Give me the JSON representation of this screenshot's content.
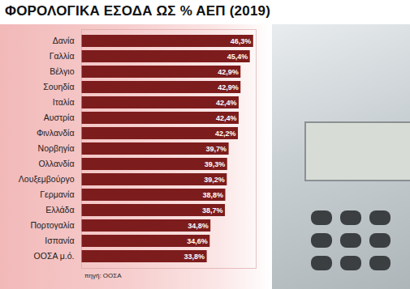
{
  "chart_data": {
    "type": "bar",
    "orientation": "horizontal",
    "title": "ΦΟΡΟΛΟΓΙΚΑ ΕΣΟΔΑ ΩΣ % ΑΕΠ (2019)",
    "source": "πηγή: ΟΟΣΑ",
    "categories": [
      "Δανία",
      "Γαλλία",
      "Βέλγιο",
      "Σουηδία",
      "Ιταλία",
      "Αυστρία",
      "Φινλανδία",
      "Νορβηγία",
      "Ολλανδία",
      "Λουξεμβούργο",
      "Γερμανία",
      "Ελλάδα",
      "Πορτογαλία",
      "Ισπανία",
      "ΟΟΣΑ μ.ό."
    ],
    "values": [
      46.3,
      45.4,
      42.9,
      42.9,
      42.4,
      42.4,
      42.2,
      39.7,
      39.3,
      39.2,
      38.8,
      38.7,
      34.8,
      34.6,
      33.8
    ],
    "value_labels": [
      "46,3%",
      "45,4%",
      "42,9%",
      "42,9%",
      "42,4%",
      "42,4%",
      "42,2%",
      "39,7%",
      "39,3%",
      "39,2%",
      "38,8%",
      "38,7%",
      "34,8%",
      "34,6%",
      "33,8%"
    ],
    "color": "#7d1c1c",
    "xlim": [
      0,
      47
    ],
    "data_labels": true,
    "tick_labels": "y",
    "grid": false
  }
}
